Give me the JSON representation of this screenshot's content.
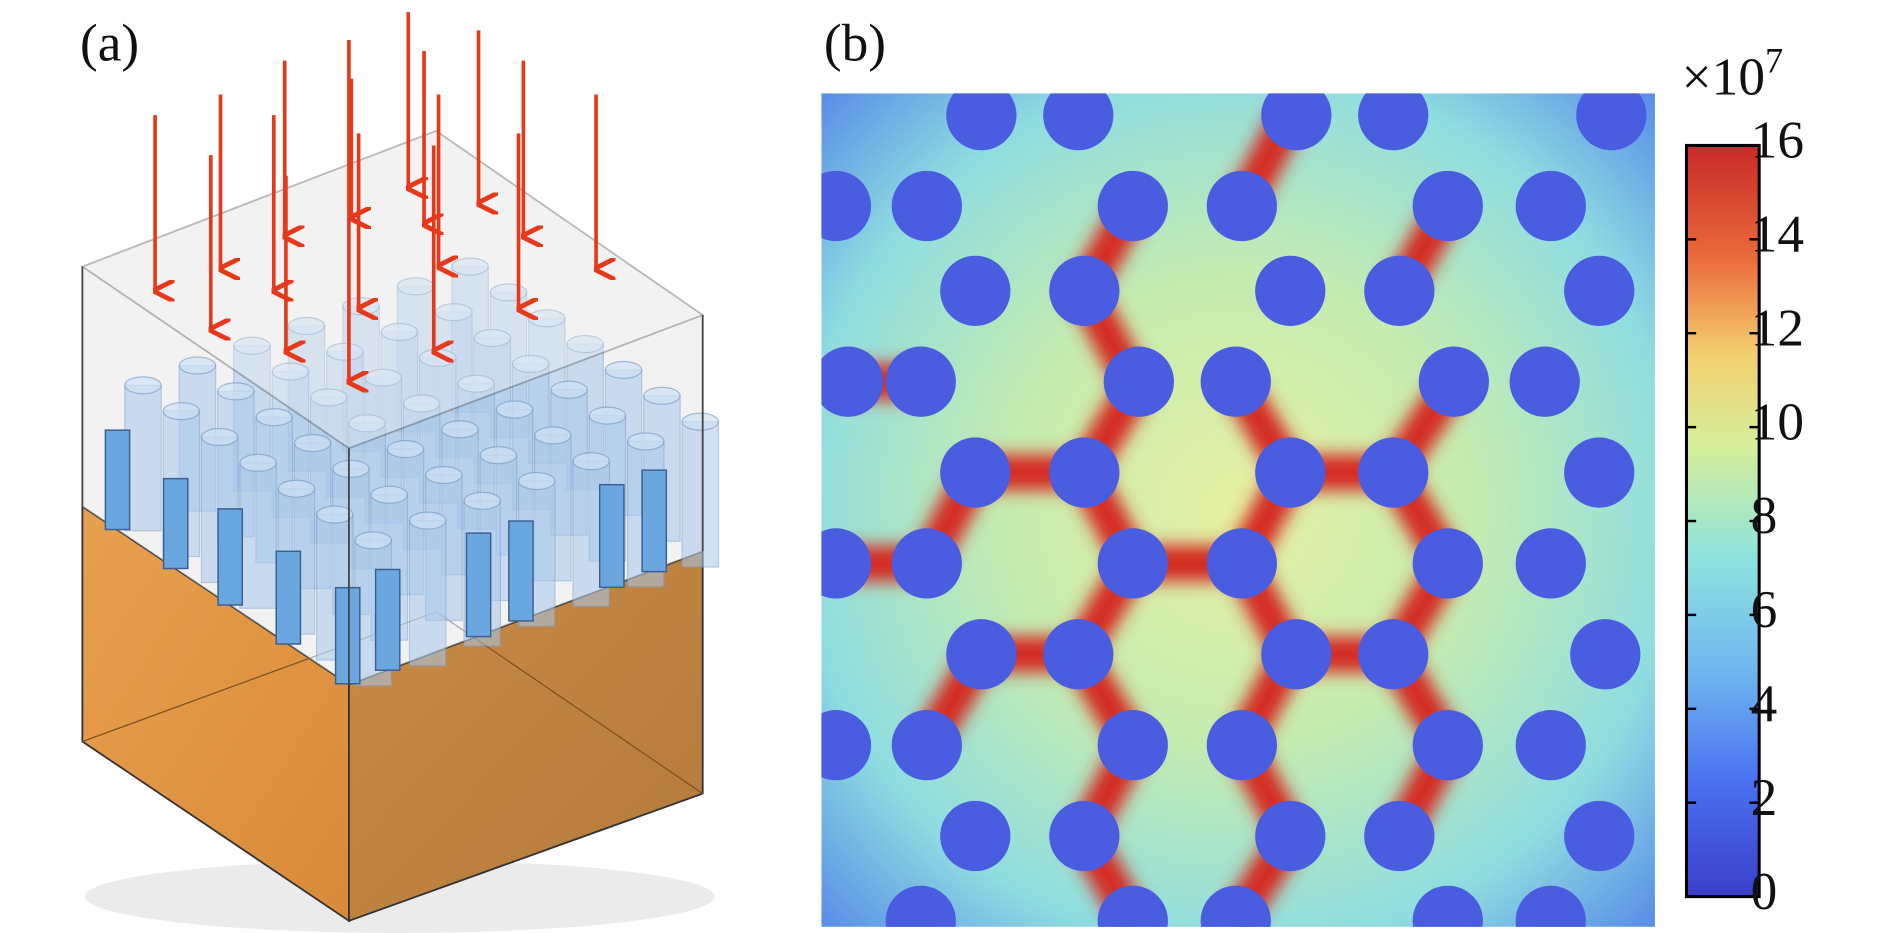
{
  "panels": {
    "a": {
      "label": "(a)"
    },
    "b": {
      "label": "(b)",
      "colorbar": {
        "multiplier": "×10",
        "exponent": "7",
        "lim": [
          0,
          16
        ],
        "ticks": [
          0,
          2,
          4,
          6,
          8,
          10,
          12,
          14,
          16
        ]
      }
    }
  }
}
